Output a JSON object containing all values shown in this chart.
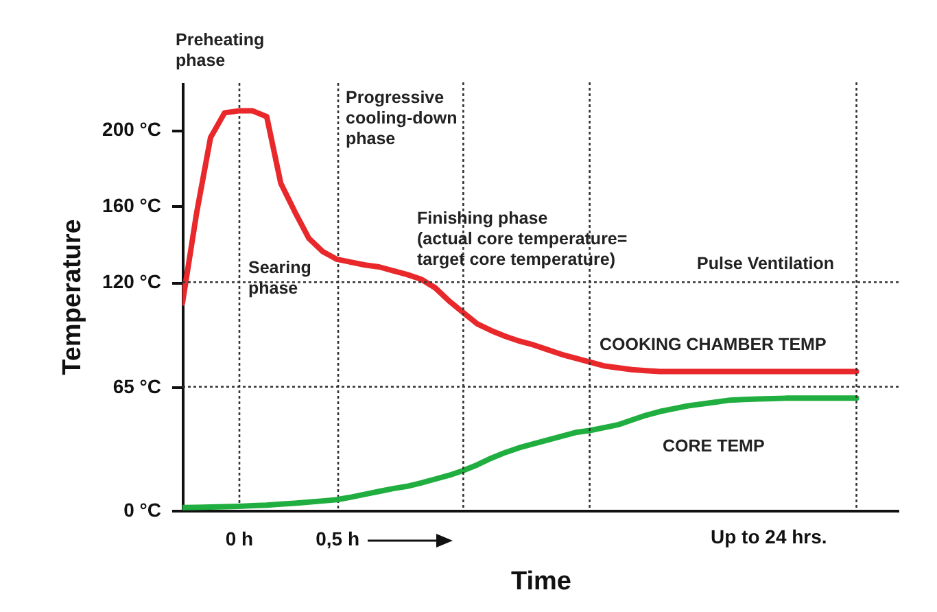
{
  "chart_data": {
    "type": "line",
    "xlabel": "Time",
    "ylabel": "Temperature",
    "categories": [
      null,
      null,
      null,
      null,
      "0 h",
      null,
      null,
      null,
      null,
      null,
      null,
      "0,5 h",
      null,
      null,
      null,
      null,
      null,
      null,
      null,
      null,
      null,
      null,
      null,
      null,
      null,
      null,
      null,
      null,
      null,
      null,
      null,
      null,
      null,
      null,
      null,
      null,
      null,
      null,
      null,
      null,
      null,
      null,
      null,
      null,
      null,
      null,
      null,
      null,
      null,
      null,
      null,
      null
    ],
    "ylim": [
      0,
      225
    ],
    "yticks": [
      {
        "value": 0,
        "label": "0 °C"
      },
      {
        "value": 65,
        "label": "65 °C"
      },
      {
        "value": 120,
        "label": "120 °C"
      },
      {
        "value": 160,
        "label": "160 °C"
      },
      {
        "value": 200,
        "label": "200 °C"
      }
    ],
    "series": [
      {
        "name": "COOKING CHAMBER TEMP",
        "color": "#e8282b",
        "values": [
          109,
          156,
          196,
          209,
          210,
          210,
          207,
          172,
          157,
          143,
          136,
          132,
          130.5,
          129,
          128,
          126,
          124,
          121.5,
          117,
          110,
          104,
          98,
          94.5,
          91.5,
          89,
          87,
          84.5,
          82,
          80,
          78,
          76,
          75,
          74,
          73.5,
          73,
          73,
          73,
          73,
          73,
          73,
          73,
          73,
          73,
          73,
          73,
          73,
          73,
          73,
          73,
          null,
          null,
          null
        ]
      },
      {
        "name": "CORE TEMP",
        "color": "#1fae3f",
        "values": [
          1.5,
          1.6,
          1.8,
          2,
          2.2,
          2.5,
          2.8,
          3.3,
          3.8,
          4.4,
          5,
          5.7,
          7,
          8.5,
          10,
          11.5,
          12.7,
          14.5,
          16.5,
          18.5,
          21,
          24,
          27.5,
          30.5,
          33,
          35,
          37,
          39,
          41,
          42,
          43.5,
          45,
          47.5,
          50,
          52,
          53.5,
          55,
          56,
          57,
          58,
          58.3,
          58.6,
          58.8,
          59,
          59,
          59,
          59,
          59,
          59,
          null,
          null,
          null
        ]
      }
    ],
    "ref_lines": [
      {
        "axis": "y",
        "value": 65,
        "line_style": "dotted"
      },
      {
        "axis": "y",
        "value": 120,
        "line_style": "dotted"
      }
    ],
    "annotations": [
      "Preheating\nphase",
      "Searing\nphase",
      "Progressive\ncooling-down\nphase",
      "Finishing phase\n(actual core temperature=\ntarget core temperature)",
      "Pulse Ventilation",
      "Up to 24 hrs."
    ],
    "legend": false,
    "line_style": "solid",
    "marker": "none",
    "grid": "x"
  }
}
